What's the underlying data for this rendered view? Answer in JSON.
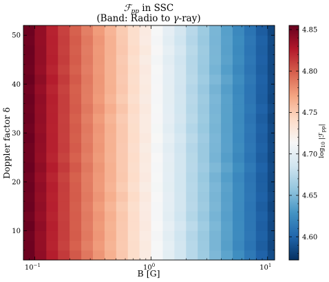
{
  "chart_data": {
    "type": "heatmap",
    "title_line1_prefix": "ℱ",
    "title_line1_sub": "pp",
    "title_line1_suffix": " in SSC",
    "title_line2_prefix": "(Band: Radio to ",
    "title_line2_gamma": "γ",
    "title_line2_suffix": "-ray)",
    "xlabel": "B [G]",
    "ylabel": "Doppler factor δ",
    "xscale": "log",
    "xlim": [
      0.08,
      11.5
    ],
    "ylim": [
      4,
      52
    ],
    "x_tick_labels": [
      {
        "value": 0.1,
        "base": "10",
        "exp": "−1"
      },
      {
        "value": 1,
        "base": "10",
        "exp": "0"
      },
      {
        "value": 10,
        "base": "10",
        "exp": "1"
      }
    ],
    "y_ticks": [
      10,
      20,
      30,
      40,
      50
    ],
    "x_edges_log10": [
      -1.1,
      -1.0,
      -0.9,
      -0.8,
      -0.7,
      -0.6,
      -0.5,
      -0.4,
      -0.3,
      -0.2,
      -0.1,
      0.0,
      0.1,
      0.2,
      0.3,
      0.4,
      0.5,
      0.6,
      0.7,
      0.8,
      0.9,
      1.0,
      1.06
    ],
    "y_edges": [
      4,
      6,
      8,
      10,
      12,
      14,
      16,
      18,
      20,
      22,
      24,
      26,
      28,
      30,
      32,
      34,
      36,
      38,
      40,
      42,
      44,
      46,
      48,
      50,
      52
    ],
    "column_values": [
      4.852,
      4.838,
      4.823,
      4.811,
      4.799,
      4.787,
      4.775,
      4.763,
      4.751,
      4.739,
      4.726,
      4.712,
      4.699,
      4.686,
      4.673,
      4.661,
      4.648,
      4.636,
      4.623,
      4.61,
      4.597,
      4.585
    ],
    "cell_variation": "slight variation with delta",
    "colormap": "RdBu_r",
    "colormap_stops": [
      "#053061",
      "#2166ac",
      "#4393c3",
      "#92c5de",
      "#d1e5f0",
      "#f7f7f7",
      "#fddbc7",
      "#f4a582",
      "#d6604d",
      "#b2182b",
      "#67001f"
    ],
    "colorbar": {
      "min": 4.572,
      "max": 4.855,
      "ticks": [
        "4.60",
        "4.65",
        "4.70",
        "4.75",
        "4.80",
        "4.85"
      ],
      "label_prefix": "log",
      "label_sub": "10",
      "label_body": " |ℱ",
      "label_sub2": "pp",
      "label_suffix": "|"
    }
  }
}
